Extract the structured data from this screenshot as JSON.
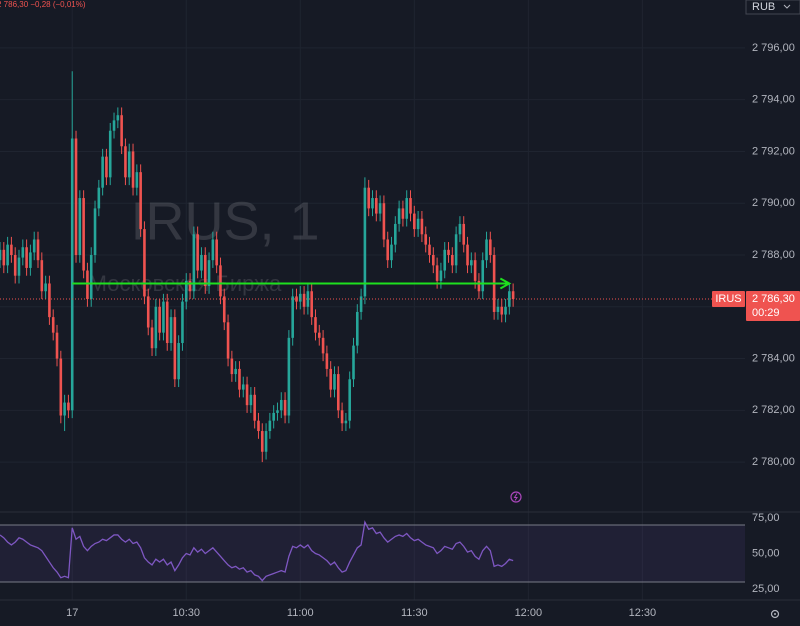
{
  "chart_data": {
    "type": "candlestick",
    "quote": "2 786,30 −0,28 (−0,01%)",
    "currency": "RUB",
    "watermark": "IRUS, 1",
    "watermark_sub": "Московская Биржа",
    "symbol": "IRUS",
    "countdown": "00:29",
    "up_color": "#26a69a",
    "down_color": "#ef5350",
    "background": "#161a25",
    "grid": true,
    "x": [
      "09:41",
      "09:42",
      "09:43",
      "09:44",
      "09:45",
      "09:46",
      "09:47",
      "09:48",
      "09:49",
      "09:50",
      "09:51",
      "09:52",
      "09:53",
      "09:54",
      "09:55",
      "09:56",
      "09:57",
      "09:58",
      "09:59",
      "10:00",
      "10:01",
      "10:02",
      "10:03",
      "10:04",
      "10:05",
      "10:06",
      "10:07",
      "10:08",
      "10:09",
      "10:10",
      "10:11",
      "10:12",
      "10:13",
      "10:14",
      "10:15",
      "10:16",
      "10:17",
      "10:18",
      "10:19",
      "10:20",
      "10:21",
      "10:22",
      "10:23",
      "10:24",
      "10:25",
      "10:26",
      "10:27",
      "10:28",
      "10:29",
      "10:30",
      "10:31",
      "10:32",
      "10:33",
      "10:34",
      "10:35",
      "10:36",
      "10:37",
      "10:38",
      "10:39",
      "10:40",
      "10:41",
      "10:42",
      "10:43",
      "10:44",
      "10:45",
      "10:46",
      "10:47",
      "10:48",
      "10:49",
      "10:50",
      "10:51",
      "10:52",
      "10:53",
      "10:54",
      "10:55",
      "10:56",
      "10:57",
      "10:58",
      "10:59",
      "11:00",
      "11:01",
      "11:02",
      "11:03",
      "11:04",
      "11:05",
      "11:06",
      "11:07",
      "11:08",
      "11:09",
      "11:10",
      "11:11",
      "11:12",
      "11:13",
      "11:14",
      "11:15",
      "11:16",
      "11:17",
      "11:18",
      "11:19",
      "11:20",
      "11:21",
      "11:22",
      "11:23",
      "11:24",
      "11:25",
      "11:26",
      "11:27",
      "11:28",
      "11:29",
      "11:30",
      "11:31",
      "11:32",
      "11:33",
      "11:34",
      "11:35",
      "11:36",
      "11:37",
      "11:38",
      "11:39",
      "11:40",
      "11:41",
      "11:42",
      "11:43",
      "11:44",
      "11:45",
      "11:46",
      "11:47",
      "11:48",
      "11:49",
      "11:50",
      "11:51",
      "11:52",
      "11:53",
      "11:54",
      "11:55",
      "11:56"
    ],
    "open": [
      2787.8,
      2788.2,
      2787.6,
      2788.4,
      2788.0,
      2787.2,
      2787.9,
      2788.3,
      2787.5,
      2788.1,
      2788.6,
      2787.8,
      2786.6,
      2786.9,
      2785.6,
      2785.0,
      2784.0,
      2781.8,
      2782.3,
      2782.0,
      2792.5,
      2788.0,
      2790.2,
      2787.4,
      2786.3,
      2788.0,
      2789.8,
      2790.6,
      2791.8,
      2791.0,
      2792.8,
      2793.2,
      2793.4,
      2792.2,
      2791.0,
      2792.0,
      2790.6,
      2791.2,
      2789.0,
      2786.4,
      2785.2,
      2784.4,
      2786.0,
      2785.0,
      2786.2,
      2784.6,
      2785.6,
      2783.2,
      2784.6,
      2786.2,
      2787.0,
      2786.6,
      2788.8,
      2787.4,
      2788.0,
      2786.8,
      2787.8,
      2788.6,
      2787.6,
      2786.4,
      2785.4,
      2784.0,
      2783.4,
      2783.6,
      2782.8,
      2783.0,
      2782.2,
      2782.6,
      2781.6,
      2781.2,
      2780.4,
      2781.2,
      2781.6,
      2781.9,
      2782.0,
      2782.4,
      2781.8,
      2784.8,
      2786.4,
      2786.2,
      2786.5,
      2786.0,
      2786.6,
      2785.6,
      2785.0,
      2784.8,
      2784.2,
      2783.6,
      2782.8,
      2783.4,
      2782.0,
      2781.5,
      2781.6,
      2783.2,
      2784.5,
      2785.8,
      2786.4,
      2790.6,
      2789.8,
      2790.2,
      2789.6,
      2790.0,
      2788.6,
      2787.8,
      2788.4,
      2789.2,
      2789.8,
      2789.4,
      2790.2,
      2789.6,
      2789.0,
      2789.4,
      2788.8,
      2788.4,
      2788.0,
      2787.6,
      2787.0,
      2787.4,
      2788.2,
      2788.0,
      2787.6,
      2788.8,
      2789.2,
      2788.4,
      2787.6,
      2787.8,
      2787.0,
      2786.6,
      2787.8,
      2788.6,
      2788.0,
      2785.8,
      2786.0,
      2785.7,
      2786.0,
      2786.6
    ],
    "high": [
      2788.5,
      2788.5,
      2788.7,
      2788.7,
      2788.3,
      2788.2,
      2788.6,
      2788.6,
      2788.4,
      2788.9,
      2788.9,
      2788.1,
      2787.2,
      2787.2,
      2785.9,
      2785.3,
      2784.3,
      2782.6,
      2782.6,
      2795.1,
      2792.8,
      2790.5,
      2790.5,
      2787.7,
      2788.3,
      2790.1,
      2790.9,
      2792.1,
      2792.1,
      2793.1,
      2793.5,
      2793.7,
      2793.7,
      2792.5,
      2792.3,
      2792.3,
      2791.5,
      2791.5,
      2789.3,
      2786.7,
      2785.5,
      2786.3,
      2786.3,
      2786.5,
      2786.5,
      2785.9,
      2785.9,
      2784.9,
      2786.5,
      2787.3,
      2787.3,
      2789.1,
      2789.1,
      2788.3,
      2788.3,
      2788.1,
      2788.9,
      2788.9,
      2787.9,
      2786.7,
      2785.7,
      2784.3,
      2783.9,
      2783.9,
      2783.3,
      2783.3,
      2782.9,
      2782.9,
      2781.9,
      2781.5,
      2781.5,
      2781.9,
      2782.2,
      2782.3,
      2782.7,
      2782.7,
      2785.1,
      2786.7,
      2786.7,
      2786.8,
      2786.8,
      2786.9,
      2786.9,
      2785.9,
      2785.3,
      2785.1,
      2784.5,
      2783.9,
      2783.7,
      2783.7,
      2782.3,
      2781.9,
      2783.5,
      2784.8,
      2786.1,
      2786.7,
      2791.0,
      2790.9,
      2790.5,
      2790.5,
      2790.3,
      2790.3,
      2788.9,
      2788.7,
      2789.5,
      2790.1,
      2790.1,
      2790.5,
      2790.5,
      2789.9,
      2789.7,
      2789.7,
      2789.1,
      2788.7,
      2788.3,
      2787.9,
      2787.7,
      2788.5,
      2788.5,
      2788.3,
      2789.1,
      2789.5,
      2789.5,
      2788.7,
      2788.1,
      2788.1,
      2787.3,
      2788.1,
      2788.9,
      2788.9,
      2788.3,
      2786.3,
      2786.3,
      2786.3,
      2786.9,
      2786.9
    ],
    "low": [
      2787.5,
      2787.3,
      2787.3,
      2787.7,
      2786.9,
      2786.9,
      2787.6,
      2787.2,
      2787.2,
      2787.8,
      2787.5,
      2786.3,
      2786.3,
      2785.3,
      2784.7,
      2783.7,
      2781.5,
      2781.2,
      2781.7,
      2781.7,
      2787.7,
      2787.7,
      2787.1,
      2786.0,
      2786.0,
      2787.7,
      2789.5,
      2790.3,
      2790.7,
      2790.7,
      2792.5,
      2792.9,
      2791.9,
      2790.7,
      2790.7,
      2790.3,
      2790.3,
      2788.7,
      2786.1,
      2784.9,
      2784.1,
      2784.1,
      2784.7,
      2784.7,
      2784.3,
      2784.3,
      2782.9,
      2782.9,
      2784.3,
      2785.9,
      2786.3,
      2786.3,
      2787.1,
      2787.1,
      2786.5,
      2786.5,
      2787.5,
      2787.3,
      2786.1,
      2785.1,
      2783.7,
      2783.1,
      2783.1,
      2782.5,
      2782.5,
      2781.9,
      2781.9,
      2781.3,
      2780.9,
      2780.0,
      2780.1,
      2780.9,
      2781.3,
      2781.6,
      2781.7,
      2781.5,
      2781.5,
      2784.5,
      2785.9,
      2785.9,
      2785.7,
      2785.7,
      2785.3,
      2784.7,
      2784.5,
      2783.9,
      2783.3,
      2782.5,
      2782.5,
      2781.7,
      2781.2,
      2781.2,
      2781.3,
      2782.9,
      2784.2,
      2785.5,
      2786.1,
      2789.5,
      2789.5,
      2789.3,
      2789.3,
      2788.3,
      2787.5,
      2787.5,
      2788.1,
      2788.9,
      2789.1,
      2789.1,
      2789.3,
      2788.7,
      2788.7,
      2788.5,
      2788.1,
      2787.7,
      2787.3,
      2786.7,
      2786.7,
      2787.1,
      2787.7,
      2787.3,
      2787.3,
      2788.5,
      2788.1,
      2787.3,
      2787.3,
      2786.7,
      2786.3,
      2786.3,
      2787.5,
      2787.7,
      2785.5,
      2785.5,
      2785.4,
      2785.4,
      2785.7,
      2786.0
    ],
    "close": [
      2788.2,
      2787.6,
      2788.4,
      2788.0,
      2787.2,
      2787.9,
      2788.3,
      2787.5,
      2788.1,
      2788.6,
      2787.8,
      2786.6,
      2786.9,
      2785.6,
      2785.0,
      2784.0,
      2781.8,
      2782.3,
      2782.0,
      2792.5,
      2788.0,
      2790.2,
      2787.4,
      2786.3,
      2788.0,
      2789.8,
      2790.6,
      2791.8,
      2791.0,
      2792.8,
      2793.2,
      2793.4,
      2792.2,
      2791.0,
      2792.0,
      2790.6,
      2791.2,
      2789.0,
      2786.4,
      2785.2,
      2784.4,
      2786.0,
      2785.0,
      2786.2,
      2784.6,
      2785.6,
      2783.2,
      2784.6,
      2786.2,
      2787.0,
      2786.6,
      2788.8,
      2787.4,
      2788.0,
      2786.8,
      2787.8,
      2788.6,
      2787.6,
      2786.4,
      2785.4,
      2784.0,
      2783.4,
      2783.6,
      2782.8,
      2783.0,
      2782.2,
      2782.6,
      2781.6,
      2781.2,
      2780.4,
      2781.2,
      2781.6,
      2781.9,
      2782.0,
      2782.4,
      2781.8,
      2784.8,
      2786.4,
      2786.2,
      2786.5,
      2786.0,
      2786.6,
      2785.6,
      2785.0,
      2784.8,
      2784.2,
      2783.6,
      2782.8,
      2783.4,
      2782.0,
      2781.5,
      2781.6,
      2783.2,
      2784.5,
      2785.8,
      2786.4,
      2790.6,
      2789.8,
      2790.2,
      2789.6,
      2790.0,
      2788.6,
      2787.8,
      2788.4,
      2789.2,
      2789.8,
      2789.4,
      2790.2,
      2789.6,
      2789.0,
      2789.4,
      2788.8,
      2788.4,
      2788.0,
      2787.6,
      2787.0,
      2787.4,
      2788.2,
      2788.0,
      2787.6,
      2788.8,
      2789.2,
      2788.4,
      2787.6,
      2787.8,
      2787.0,
      2786.6,
      2787.8,
      2788.6,
      2788.0,
      2785.8,
      2786.0,
      2785.7,
      2786.0,
      2786.6,
      2786.3
    ],
    "xlim": [
      "09:41",
      "12:57"
    ],
    "xticks": [
      {
        "value": "10:00",
        "label": "17"
      },
      "10:30",
      "11:00",
      "11:30",
      "12:00",
      "12:30"
    ],
    "ylim": [
      2778.15,
      2797.85
    ],
    "yticks": [
      {
        "value": 2780,
        "label": "2 780,00"
      },
      {
        "value": 2782,
        "label": "2 782,00"
      },
      {
        "value": 2784,
        "label": "2 784,00"
      },
      {
        "value": 2786,
        "label": "2 786,00"
      },
      {
        "value": 2788,
        "label": "2 788,00"
      },
      {
        "value": 2790,
        "label": "2 790,00"
      },
      {
        "value": 2792,
        "label": "2 792,00"
      },
      {
        "value": 2794,
        "label": "2 794,00"
      },
      {
        "value": 2796,
        "label": "2 796,00"
      }
    ],
    "last_price": {
      "value": 2786.3,
      "label": "2 786,30"
    },
    "trendline": {
      "from": "10:00",
      "to": "11:55",
      "value": 2786.9,
      "color": "#1ee01e"
    },
    "rsi": {
      "color": "#7e57c2",
      "ylim": [
        17.4,
        79.1
      ],
      "bands": [
        30,
        70
      ],
      "yticks": [
        {
          "value": 75,
          "label": "75,00"
        },
        {
          "value": 50,
          "label": "50,00"
        },
        {
          "value": 25,
          "label": "25,00"
        }
      ],
      "values": [
        63,
        61,
        58,
        56,
        58,
        61,
        60,
        58,
        56,
        55,
        54,
        52,
        48,
        44,
        40,
        37,
        33,
        34,
        33,
        68,
        60,
        62,
        55,
        52,
        55,
        57,
        58,
        60,
        59,
        61,
        63,
        63,
        60,
        58,
        60,
        57,
        58,
        54,
        47,
        44,
        42,
        46,
        44,
        46,
        42,
        44,
        38,
        42,
        47,
        50,
        49,
        54,
        51,
        53,
        50,
        52,
        54,
        51,
        48,
        45,
        42,
        40,
        41,
        39,
        40,
        37,
        38,
        35,
        34,
        31,
        34,
        35,
        36,
        37,
        38,
        37,
        48,
        55,
        54,
        56,
        54,
        56,
        52,
        50,
        49,
        47,
        45,
        42,
        44,
        40,
        37,
        38,
        44,
        49,
        54,
        56,
        72,
        67,
        68,
        64,
        65,
        61,
        58,
        60,
        62,
        63,
        62,
        64,
        61,
        59,
        60,
        58,
        56,
        55,
        54,
        50,
        52,
        55,
        54,
        53,
        57,
        58,
        55,
        51,
        52,
        48,
        46,
        52,
        55,
        52,
        41,
        42,
        41,
        43,
        46,
        45
      ]
    }
  }
}
